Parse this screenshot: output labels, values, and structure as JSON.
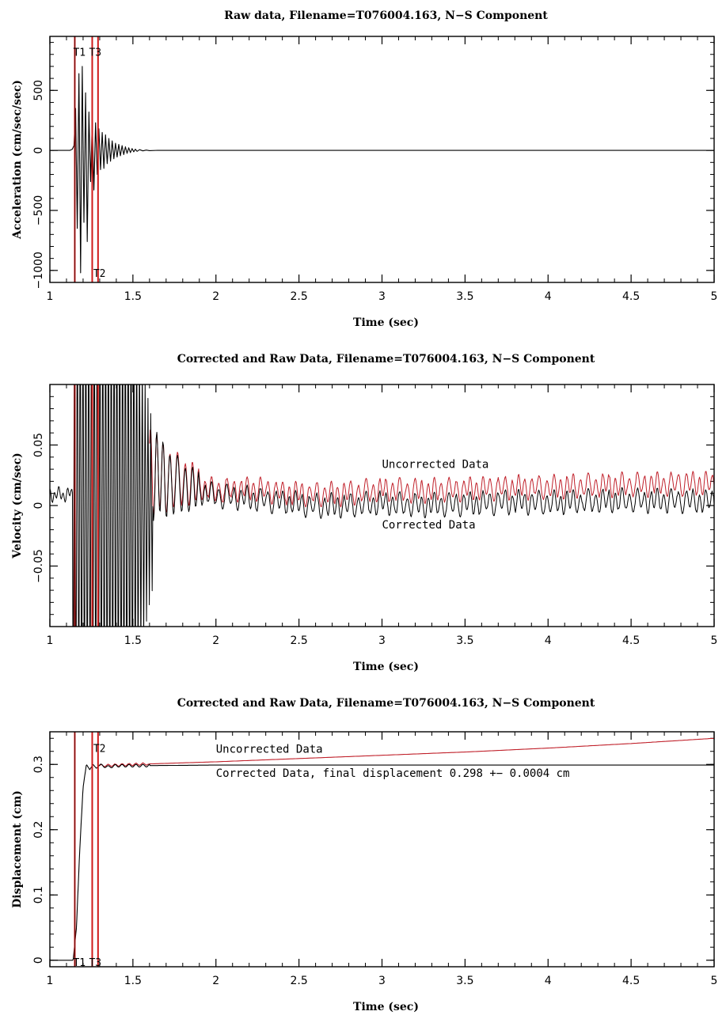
{
  "colors": {
    "raw": "#000000",
    "uncorrected": "#c0202a",
    "marker": "#d01a1a"
  },
  "chart_data": [
    {
      "type": "line",
      "title": "Raw data, Filename=T076004.163, N−S Component",
      "xlabel": "Time (sec)",
      "ylabel": "Acceleration (cm/sec/sec)",
      "xlim": [
        1,
        5
      ],
      "ylim": [
        -1100,
        950
      ],
      "grid": false,
      "xticks": [
        1,
        1.5,
        2,
        2.5,
        3,
        3.5,
        4,
        4.5,
        5
      ],
      "xtick_labels": [
        "1",
        "1.5",
        "2",
        "2.5",
        "3",
        "3.5",
        "4",
        "4.5",
        "5"
      ],
      "yticks": [
        -1000,
        -500,
        0,
        500
      ],
      "ytick_labels": [
        "−1000",
        "−500",
        "0",
        "500"
      ],
      "markers": [
        {
          "name": "T1",
          "x": 1.15,
          "label_y": 820
        },
        {
          "name": "T3",
          "x": 1.255,
          "label_y": 820
        },
        {
          "name": "T2",
          "x": 1.29,
          "label_y": -1020
        }
      ],
      "series": [
        {
          "color": "#000000",
          "x": [
            1,
            1.12,
            1.135,
            1.145,
            1.155,
            1.165,
            1.175,
            1.185,
            1.195,
            1.205,
            1.215,
            1.225,
            1.235,
            1.245,
            1.255,
            1.265,
            1.275,
            1.285,
            1.295,
            1.305,
            1.315,
            1.325,
            1.335,
            1.345,
            1.355,
            1.365,
            1.375,
            1.385,
            1.395,
            1.405,
            1.415,
            1.425,
            1.435,
            1.445,
            1.455,
            1.465,
            1.475,
            1.485,
            1.495,
            1.505,
            1.515,
            1.525,
            1.54,
            1.56,
            1.58,
            1.6,
            1.65,
            1.7,
            5
          ],
          "y": [
            0,
            0,
            10,
            40,
            350,
            -650,
            640,
            -1020,
            700,
            -600,
            480,
            -760,
            320,
            -260,
            240,
            -330,
            230,
            -200,
            180,
            -160,
            150,
            -150,
            130,
            -110,
            100,
            -90,
            80,
            -70,
            60,
            -55,
            50,
            -45,
            40,
            -35,
            30,
            -25,
            22,
            -18,
            15,
            -12,
            10,
            -8,
            6,
            -4,
            3,
            -2,
            1,
            0,
            0
          ]
        }
      ]
    },
    {
      "type": "line",
      "title": "Corrected and Raw Data, Filename=T076004.163, N−S Component",
      "xlabel": "Time (sec)",
      "ylabel": "Velocity (cm/sec)",
      "xlim": [
        1,
        5
      ],
      "ylim": [
        -0.1,
        0.1
      ],
      "grid": false,
      "xticks": [
        1,
        1.5,
        2,
        2.5,
        3,
        3.5,
        4,
        4.5,
        5
      ],
      "xtick_labels": [
        "1",
        "1.5",
        "2",
        "2.5",
        "3",
        "3.5",
        "4",
        "4.5",
        "5"
      ],
      "yticks": [
        -0.05,
        0,
        0.05
      ],
      "ytick_labels": [
        "−0.05",
        "0",
        "0.05"
      ],
      "markers": [
        {
          "name": "",
          "x": 1.15
        },
        {
          "name": "",
          "x": 1.255
        },
        {
          "name": "",
          "x": 1.29
        }
      ],
      "annotations": [
        {
          "text": "Uncorrected Data",
          "x": 3.0,
          "y": 0.031
        },
        {
          "text": "Corrected Data",
          "x": 3.0,
          "y": -0.019
        }
      ],
      "series": [
        {
          "name": "Uncorrected Data",
          "color": "#c0202a",
          "x": [
            1.6,
            1.7,
            1.8,
            2.0,
            2.2,
            2.4,
            2.6,
            2.8,
            3.0,
            3.2,
            3.4,
            3.6,
            3.8,
            4.0,
            4.2,
            4.4,
            4.6,
            4.8,
            5.0
          ],
          "y": [
            0.03,
            0.022,
            0.02,
            0.012,
            0.014,
            0.011,
            0.009,
            0.01,
            0.013,
            0.012,
            0.013,
            0.014,
            0.015,
            0.015,
            0.016,
            0.017,
            0.017,
            0.018,
            0.018
          ],
          "oscillation_amplitude": 0.008
        },
        {
          "name": "Corrected Data",
          "color": "#000000",
          "x": [
            1.0,
            1.15,
            1.3,
            1.5,
            1.6,
            1.7,
            1.8,
            2.0,
            2.2,
            2.4,
            2.6,
            2.8,
            3.0,
            3.2,
            3.4,
            3.6,
            3.8,
            4.0,
            4.2,
            4.4,
            4.6,
            4.8,
            5.0
          ],
          "y": [
            0.01,
            0.01,
            0.0,
            0.0,
            0.03,
            0.02,
            0.015,
            0.008,
            0.006,
            0.003,
            0.0,
            0.0,
            0.002,
            0.0,
            0.001,
            0.002,
            0.003,
            0.002,
            0.003,
            0.004,
            0.004,
            0.004,
            0.003
          ],
          "oscillation_amplitude": 0.008
        }
      ]
    },
    {
      "type": "line",
      "title": "Corrected and Raw Data, Filename=T076004.163, N−S Component",
      "xlabel": "Time (sec)",
      "ylabel": "Displacement (cm)",
      "xlim": [
        1,
        5
      ],
      "ylim": [
        -0.01,
        0.35
      ],
      "grid": false,
      "xticks": [
        1,
        1.5,
        2,
        2.5,
        3,
        3.5,
        4,
        4.5,
        5
      ],
      "xtick_labels": [
        "1",
        "1.5",
        "2",
        "2.5",
        "3",
        "3.5",
        "4",
        "4.5",
        "5"
      ],
      "yticks": [
        0,
        0.1,
        0.2,
        0.3
      ],
      "ytick_labels": [
        "0",
        "0.1",
        "0.2",
        "0.3"
      ],
      "markers": [
        {
          "name": "T1",
          "x": 1.15,
          "label_y": -0.003
        },
        {
          "name": "T3",
          "x": 1.255,
          "label_y": -0.003
        },
        {
          "name": "T2",
          "x": 1.29,
          "label_y": 0.325
        }
      ],
      "annotations": [
        {
          "text": "Uncorrected Data",
          "x": 2.0,
          "y": 0.318
        },
        {
          "text": "Corrected Data, final displacement 0.298 +−  0.0004 cm",
          "x": 2.0,
          "y": 0.281
        }
      ],
      "series": [
        {
          "name": "Uncorrected Data",
          "color": "#c0202a",
          "x": [
            1.3,
            1.5,
            2.0,
            2.5,
            3.0,
            3.5,
            4.0,
            4.5,
            5.0
          ],
          "y": [
            0.298,
            0.3,
            0.304,
            0.309,
            0.314,
            0.319,
            0.325,
            0.332,
            0.34
          ]
        },
        {
          "name": "Corrected Data",
          "color": "#000000",
          "x": [
            1.0,
            1.14,
            1.16,
            1.18,
            1.2,
            1.22,
            1.24,
            1.26,
            1.28,
            1.3,
            1.35,
            1.4,
            1.5,
            2.0,
            2.5,
            3.0,
            3.5,
            4.0,
            4.5,
            5.0
          ],
          "y": [
            0.0,
            0.0,
            0.05,
            0.17,
            0.265,
            0.3,
            0.292,
            0.3,
            0.294,
            0.299,
            0.296,
            0.298,
            0.298,
            0.299,
            0.299,
            0.299,
            0.299,
            0.299,
            0.299,
            0.299
          ]
        }
      ]
    }
  ]
}
